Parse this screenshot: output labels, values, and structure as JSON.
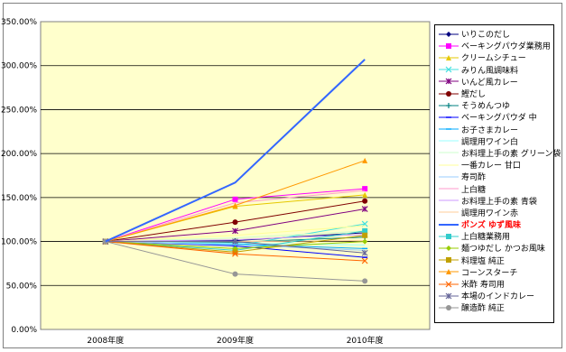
{
  "chart_data": {
    "type": "line",
    "categories": [
      "2008年度",
      "2009年度",
      "2010年度"
    ],
    "ylim": [
      0,
      350
    ],
    "yticks": [
      "0.00%",
      "50.00%",
      "100.00%",
      "150.00%",
      "200.00%",
      "250.00%",
      "300.00%",
      "350.00%"
    ],
    "plot_background": "#ffffcc",
    "grid": true,
    "legend_position": "right",
    "series": [
      {
        "name": "いりこのだし",
        "color": "#000080",
        "marker": "diamond",
        "values": [
          100,
          101,
          110
        ]
      },
      {
        "name": "ベーキングパウダ業務用",
        "color": "#ff00ff",
        "marker": "square",
        "values": [
          100,
          148,
          160
        ]
      },
      {
        "name": "クリームシチュー",
        "color": "#e6c800",
        "marker": "triangle",
        "values": [
          100,
          140,
          153
        ]
      },
      {
        "name": "みりん風調味料",
        "color": "#40e0e0",
        "marker": "x",
        "values": [
          100,
          95,
          120
        ]
      },
      {
        "name": "いんど風カレー",
        "color": "#800080",
        "marker": "star",
        "values": [
          100,
          112,
          137
        ]
      },
      {
        "name": "鰹だし",
        "color": "#800000",
        "marker": "circle",
        "values": [
          100,
          122,
          146
        ]
      },
      {
        "name": "そうめんつゆ",
        "color": "#008080",
        "marker": "plus",
        "values": [
          100,
          99,
          105
        ]
      },
      {
        "name": "ベーキングパウダ 中",
        "color": "#0000ff",
        "marker": "dash",
        "values": [
          100,
          95,
          82
        ]
      },
      {
        "name": "お子さまカレー",
        "color": "#00aaff",
        "marker": "dash",
        "values": [
          100,
          97,
          92
        ]
      },
      {
        "name": "調理用ワイン白",
        "color": "#99ffff",
        "marker": "none",
        "values": [
          100,
          98,
          96
        ]
      },
      {
        "name": "お料理上手の素 グリーン袋",
        "color": "#ccffcc",
        "marker": "none",
        "values": [
          100,
          104,
          112
        ]
      },
      {
        "name": "一番カレー 甘口",
        "color": "#ffff99",
        "marker": "none",
        "values": [
          100,
          107,
          118
        ]
      },
      {
        "name": "寿司酢",
        "color": "#99ccff",
        "marker": "none",
        "values": [
          100,
          96,
          90
        ]
      },
      {
        "name": "上白糖",
        "color": "#ff99cc",
        "marker": "none",
        "values": [
          100,
          144,
          158
        ]
      },
      {
        "name": "お料理上手の素 青袋",
        "color": "#cc99ff",
        "marker": "none",
        "values": [
          100,
          102,
          108
        ]
      },
      {
        "name": "調理用ワイン赤",
        "color": "#ffcc99",
        "marker": "none",
        "values": [
          100,
          100,
          101
        ]
      },
      {
        "name": "ポンズ ゆず風味",
        "color": "#3366ff",
        "marker": "none",
        "highlight": true,
        "values": [
          100,
          167,
          307
        ]
      },
      {
        "name": "上白糖業務用",
        "color": "#33cccc",
        "marker": "square",
        "values": [
          100,
          90,
          112
        ]
      },
      {
        "name": "麺つゆだし かつお風味",
        "color": "#99cc00",
        "marker": "diamond",
        "values": [
          100,
          92,
          100
        ]
      },
      {
        "name": "料理塩 純正",
        "color": "#c0a000",
        "marker": "square",
        "values": [
          100,
          88,
          107
        ]
      },
      {
        "name": "コーンスターチ",
        "color": "#ff9900",
        "marker": "triangle",
        "values": [
          100,
          141,
          192
        ]
      },
      {
        "name": "米酢 寿司用",
        "color": "#ff6600",
        "marker": "x",
        "values": [
          100,
          86,
          78
        ]
      },
      {
        "name": "本場のインドカレー",
        "color": "#666699",
        "marker": "star",
        "values": [
          100,
          100,
          87
        ]
      },
      {
        "name": "醸造酢 純正",
        "color": "#969696",
        "marker": "circle",
        "values": [
          100,
          63,
          55
        ]
      }
    ]
  }
}
